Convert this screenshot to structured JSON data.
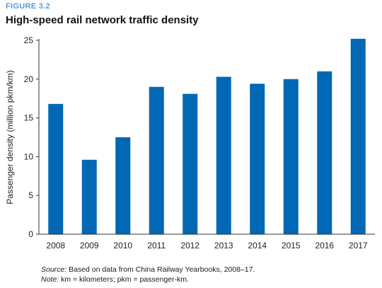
{
  "figure": {
    "label": "FIGURE 3.2",
    "title": "High-speed rail network traffic density"
  },
  "notes": {
    "source_label": "Source:",
    "source_text": " Based on data from China Railway Yearbooks, 2008–17.",
    "note_label": "Note:",
    "note_text": " km = kilometers; pkm = passenger-km."
  },
  "chart_data": {
    "type": "bar",
    "title": "High-speed rail network traffic density",
    "xlabel": "",
    "ylabel": "Passenger density (million pkm/km)",
    "categories": [
      "2008",
      "2009",
      "2010",
      "2011",
      "2012",
      "2013",
      "2014",
      "2015",
      "2016",
      "2017"
    ],
    "values": [
      16.8,
      9.6,
      12.5,
      19.0,
      18.1,
      20.3,
      19.4,
      20.0,
      21.0,
      25.2
    ],
    "ylim": [
      0,
      25
    ],
    "yticks": [
      0,
      5,
      10,
      15,
      20,
      25
    ],
    "grid": false,
    "bar_color": "#0068b4"
  }
}
